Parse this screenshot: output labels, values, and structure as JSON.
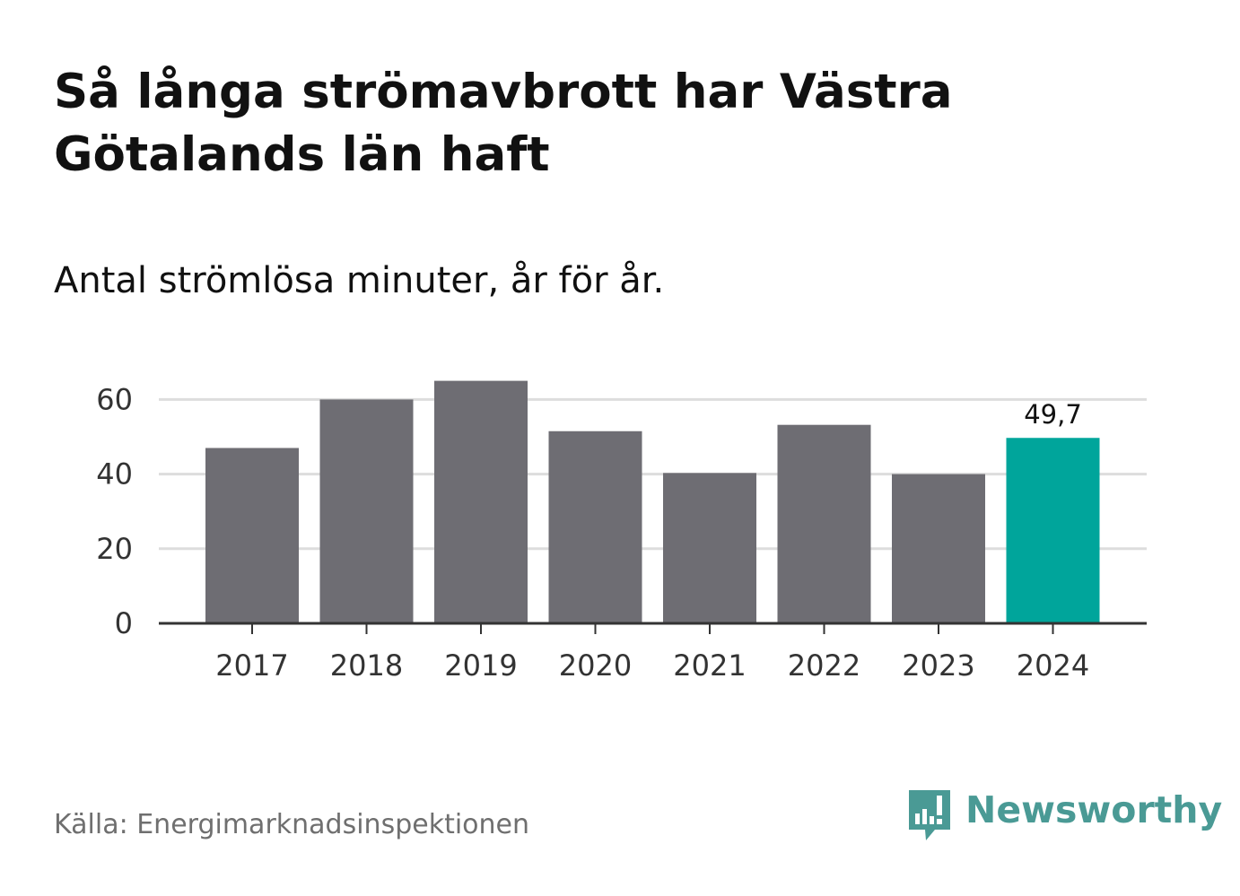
{
  "title": "Så långa strömavbrott har Västra Götalands län haft",
  "subtitle": "Antal strömlösa minuter, år för år.",
  "source": "Källa: Energimarknadsinspektionen",
  "brand": {
    "name": "Newsworthy",
    "icon": "newsworthy-bar-chart-icon",
    "color": "#4a9a95"
  },
  "colors": {
    "bar": "#6e6d73",
    "highlight": "#00a59b",
    "grid": "#dddddd",
    "baseline": "#333333"
  },
  "chart_data": {
    "type": "bar",
    "title": "Så långa strömavbrott har Västra Götalands län haft",
    "subtitle": "Antal strömlösa minuter, år för år.",
    "xlabel": "",
    "ylabel": "",
    "categories": [
      "2017",
      "2018",
      "2019",
      "2020",
      "2021",
      "2022",
      "2023",
      "2024"
    ],
    "values": [
      47,
      60,
      65,
      51.5,
      40.3,
      53.2,
      40,
      49.7
    ],
    "highlight_index": 7,
    "data_labels": [
      {
        "index": 7,
        "text": "49,7"
      }
    ],
    "yticks": [
      0,
      20,
      40,
      60
    ],
    "ylim": [
      0,
      65
    ],
    "grid": true,
    "legend": "none"
  }
}
